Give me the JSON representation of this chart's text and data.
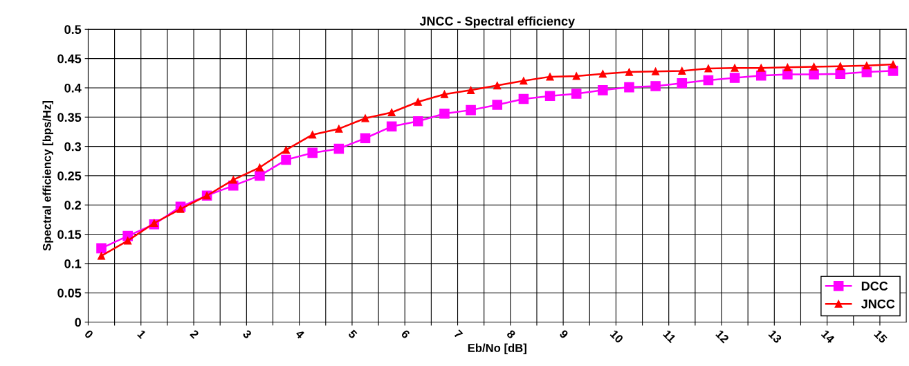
{
  "chart_data": {
    "type": "line",
    "title": "JNCC - Spectral efficiency",
    "xlabel": "Eb/No [dB]",
    "ylabel": "Spectral efficiency [bps/Hz]",
    "x": [
      0.25,
      0.75,
      1.25,
      1.75,
      2.25,
      2.75,
      3.25,
      3.75,
      4.25,
      4.75,
      5.25,
      5.75,
      6.25,
      6.75,
      7.25,
      7.75,
      8.25,
      8.75,
      9.25,
      9.75,
      10.25,
      10.75,
      11.25,
      11.75,
      12.25,
      12.75,
      13.25,
      13.75,
      14.25,
      14.75,
      15.25
    ],
    "series": [
      {
        "name": "DCC",
        "color": "#ff00ff",
        "marker": "square",
        "values": [
          0.126,
          0.147,
          0.167,
          0.197,
          0.216,
          0.233,
          0.25,
          0.277,
          0.289,
          0.296,
          0.314,
          0.334,
          0.343,
          0.356,
          0.362,
          0.371,
          0.381,
          0.386,
          0.39,
          0.396,
          0.401,
          0.403,
          0.408,
          0.413,
          0.417,
          0.421,
          0.423,
          0.423,
          0.424,
          0.427,
          0.429
        ]
      },
      {
        "name": "JNCC",
        "color": "#ff0000",
        "marker": "triangle",
        "values": [
          0.113,
          0.139,
          0.169,
          0.193,
          0.216,
          0.243,
          0.264,
          0.294,
          0.32,
          0.33,
          0.348,
          0.358,
          0.376,
          0.389,
          0.396,
          0.404,
          0.412,
          0.419,
          0.42,
          0.424,
          0.427,
          0.428,
          0.429,
          0.433,
          0.434,
          0.434,
          0.435,
          0.436,
          0.437,
          0.438,
          0.44
        ]
      }
    ],
    "xlim": [
      0,
      15.5
    ],
    "xticks": [
      0,
      {
        "value": 0.5,
        "label": null
      },
      1,
      {
        "value": 1.5,
        "label": null
      },
      2,
      {
        "value": 2.5,
        "label": null
      },
      3,
      {
        "value": 3.5,
        "label": null
      },
      4,
      {
        "value": 4.5,
        "label": null
      },
      5,
      {
        "value": 5.5,
        "label": null
      },
      6,
      {
        "value": 6.5,
        "label": null
      },
      7,
      {
        "value": 7.5,
        "label": null
      },
      8,
      {
        "value": 8.5,
        "label": null
      },
      9,
      {
        "value": 9.5,
        "label": null
      },
      10,
      {
        "value": 10.5,
        "label": null
      },
      11,
      {
        "value": 11.5,
        "label": null
      },
      12,
      {
        "value": 12.5,
        "label": null
      },
      13,
      {
        "value": 13.5,
        "label": null
      },
      14,
      {
        "value": 14.5,
        "label": null
      },
      15
    ],
    "ylim": [
      0,
      0.5
    ],
    "yticks": [
      0,
      0.05,
      0.1,
      0.15,
      0.2,
      0.25,
      0.3,
      0.35,
      0.4,
      0.45,
      0.5
    ],
    "grid": true,
    "legend": "bottom right",
    "line_style": "solid"
  }
}
